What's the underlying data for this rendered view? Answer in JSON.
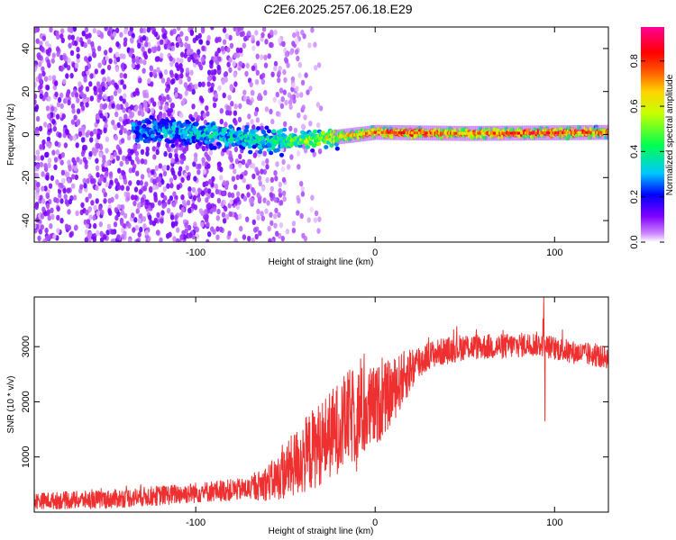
{
  "title": "C2E6.2025.257.06.18.E29",
  "chart_data": [
    {
      "type": "heatmap",
      "title": "",
      "xlabel": "Height of straight line (km)",
      "ylabel": "Frequency (Hz)",
      "xlim": [
        -190,
        130
      ],
      "ylim": [
        -50,
        50
      ],
      "xticks": [
        -100,
        0,
        100
      ],
      "xtick_labels": [
        "-100",
        "0",
        "100"
      ],
      "yticks": [
        -40,
        -20,
        0,
        20,
        40
      ],
      "ytick_labels": [
        "-40",
        "-20",
        "0",
        "20",
        "40"
      ],
      "colorbar": {
        "label": "Normalized spectral amplitude",
        "range": [
          0,
          0.95
        ],
        "ticks": [
          0.0,
          0.2,
          0.4,
          0.6,
          0.8
        ],
        "tick_labels": [
          "0.0",
          "0.2",
          "0.4",
          "0.6",
          "0.8"
        ],
        "colormap": "rainbow (white-purple-blue-cyan-green-yellow-orange-red-magenta)"
      },
      "features": {
        "noise_region_x": [
          -190,
          -50
        ],
        "noise_frequency_range": [
          -50,
          50
        ],
        "noise_amplitude": 0.1,
        "signal_center_hz": [
          {
            "x": -130,
            "f": 2
          },
          {
            "x": -100,
            "f": 1
          },
          {
            "x": -60,
            "f": -3
          },
          {
            "x": -30,
            "f": -2
          },
          {
            "x": 0,
            "f": 1
          },
          {
            "x": 50,
            "f": 0.5
          },
          {
            "x": 130,
            "f": 1
          }
        ],
        "signal_peak_amplitude": [
          {
            "x": -130,
            "a": 0.3
          },
          {
            "x": -100,
            "a": 0.35
          },
          {
            "x": -60,
            "a": 0.4
          },
          {
            "x": -30,
            "a": 0.6
          },
          {
            "x": 0,
            "a": 0.8
          },
          {
            "x": 20,
            "a": 0.85
          },
          {
            "x": 50,
            "a": 0.75
          },
          {
            "x": 95,
            "a": 0.9
          },
          {
            "x": 130,
            "a": 0.75
          }
        ]
      }
    },
    {
      "type": "line",
      "title": "",
      "xlabel": "Height of straight line (km)",
      "ylabel": "SNR (10 * v/v)",
      "xlim": [
        -190,
        130
      ],
      "ylim": [
        0,
        3900
      ],
      "xticks": [
        -100,
        0,
        100
      ],
      "xtick_labels": [
        "-100",
        "0",
        "100"
      ],
      "yticks": [
        1000,
        2000,
        3000
      ],
      "ytick_labels": [
        "1000",
        "2000",
        "3000"
      ],
      "series": [
        {
          "name": "SNR",
          "color": "#ee3030",
          "trend": [
            {
              "x": -190,
              "y": 200
            },
            {
              "x": -150,
              "y": 230
            },
            {
              "x": -120,
              "y": 300
            },
            {
              "x": -90,
              "y": 380
            },
            {
              "x": -70,
              "y": 420
            },
            {
              "x": -55,
              "y": 600
            },
            {
              "x": -40,
              "y": 1000
            },
            {
              "x": -25,
              "y": 1400
            },
            {
              "x": -15,
              "y": 1700
            },
            {
              "x": 0,
              "y": 1900
            },
            {
              "x": 10,
              "y": 2200
            },
            {
              "x": 20,
              "y": 2600
            },
            {
              "x": 30,
              "y": 2850
            },
            {
              "x": 50,
              "y": 3000
            },
            {
              "x": 70,
              "y": 3000
            },
            {
              "x": 90,
              "y": 3050
            },
            {
              "x": 110,
              "y": 2900
            },
            {
              "x": 130,
              "y": 2800
            }
          ],
          "noise": [
            {
              "x": -190,
              "a": 150
            },
            {
              "x": -70,
              "a": 200
            },
            {
              "x": -55,
              "a": 400
            },
            {
              "x": -40,
              "a": 700
            },
            {
              "x": -10,
              "a": 900
            },
            {
              "x": 15,
              "a": 500
            },
            {
              "x": 30,
              "a": 250
            },
            {
              "x": 130,
              "a": 200
            }
          ],
          "spikes": [
            {
              "x": 94,
              "y": 3900
            },
            {
              "x": 94.6,
              "y": 1650
            },
            {
              "x": 93.5,
              "y": 3500
            }
          ]
        }
      ]
    }
  ]
}
